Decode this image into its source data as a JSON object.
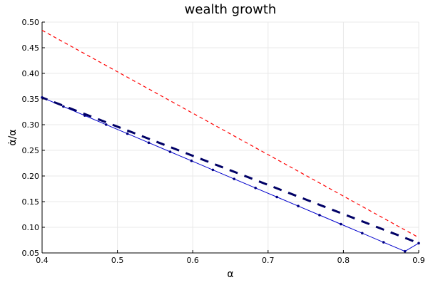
{
  "chart_data": {
    "type": "line",
    "title": "wealth growth",
    "xlabel": "α",
    "ylabel": "α̇/α",
    "xlim": [
      0.4,
      0.9
    ],
    "ylim": [
      0.05,
      0.5
    ],
    "xticks": [
      "0.4",
      "0.5",
      "0.6",
      "0.7",
      "0.8",
      "0.9"
    ],
    "yticks": [
      "0.05",
      "0.10",
      "0.15",
      "0.20",
      "0.25",
      "0.30",
      "0.35",
      "0.40",
      "0.45",
      "0.50"
    ],
    "grid": true,
    "legend": "none",
    "series": [
      {
        "color": "#ff0000",
        "style": "dashed",
        "x": [
          0.4,
          0.9
        ],
        "y": [
          0.484,
          0.08
        ]
      },
      {
        "color": "#0000cc",
        "style": "solid-markers",
        "x": [
          0.4,
          0.4283,
          0.4567,
          0.485,
          0.5133,
          0.5417,
          0.57,
          0.5983,
          0.6267,
          0.655,
          0.6833,
          0.7117,
          0.74,
          0.7683,
          0.7967,
          0.825,
          0.8533,
          0.8817,
          0.9
        ],
        "y": [
          0.353,
          0.3354,
          0.3178,
          0.3001,
          0.2825,
          0.2648,
          0.2472,
          0.2296,
          0.2119,
          0.1942,
          0.1767,
          0.159,
          0.1414,
          0.1238,
          0.1061,
          0.0885,
          0.0708,
          0.0532,
          0.069
        ]
      },
      {
        "color": "#000066",
        "style": "heavy-dashed",
        "x": [
          0.4,
          0.9
        ],
        "y": [
          0.353,
          0.069
        ]
      }
    ]
  }
}
